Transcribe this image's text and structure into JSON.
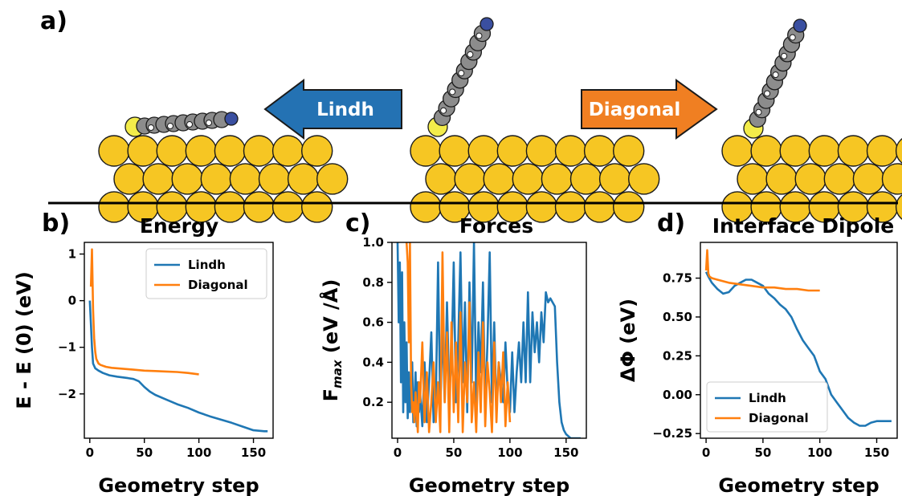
{
  "panel_a": {
    "label": "a)",
    "arrow_left_label": "Lindh",
    "arrow_right_label": "Diagonal",
    "arrow_left_color": "#2472b3",
    "arrow_right_color": "#f07f22"
  },
  "colors": {
    "lindh": "#1f77b4",
    "diagonal": "#ff7f0e",
    "gold": "#f6c623"
  },
  "chart_data": [
    {
      "panel": "b)",
      "type": "line",
      "title": "Energy",
      "xlabel": "Geometry step",
      "ylabel": "E - E (0) (eV)",
      "xlim": [
        -5,
        168
      ],
      "ylim": [
        -2.95,
        1.25
      ],
      "xticks": [
        0,
        50,
        100,
        150
      ],
      "yticks": [
        -2,
        -1,
        0,
        1
      ],
      "ytick_labels": [
        "−2",
        "−1",
        "0",
        "1"
      ],
      "legend": {
        "position": "top-right",
        "entries": [
          "Lindh",
          "Diagonal"
        ]
      },
      "series": [
        {
          "name": "Lindh",
          "color": "#1f77b4",
          "x": [
            0,
            1,
            2,
            3,
            5,
            8,
            12,
            18,
            25,
            35,
            40,
            45,
            50,
            55,
            60,
            70,
            80,
            90,
            100,
            110,
            120,
            130,
            140,
            150,
            160,
            163
          ],
          "y": [
            0,
            -0.5,
            -1.0,
            -1.35,
            -1.45,
            -1.5,
            -1.55,
            -1.6,
            -1.63,
            -1.66,
            -1.68,
            -1.73,
            -1.85,
            -1.95,
            -2.02,
            -2.12,
            -2.22,
            -2.3,
            -2.4,
            -2.48,
            -2.55,
            -2.62,
            -2.7,
            -2.78,
            -2.8,
            -2.8
          ]
        },
        {
          "name": "Diagonal",
          "color": "#ff7f0e",
          "x": [
            1,
            2,
            3,
            4,
            5,
            6,
            8,
            10,
            15,
            20,
            30,
            40,
            50,
            60,
            70,
            80,
            90,
            100
          ],
          "y": [
            0.3,
            1.1,
            -0.2,
            -0.8,
            -1.1,
            -1.25,
            -1.35,
            -1.38,
            -1.42,
            -1.44,
            -1.46,
            -1.48,
            -1.5,
            -1.51,
            -1.52,
            -1.53,
            -1.55,
            -1.58
          ]
        }
      ]
    },
    {
      "panel": "c)",
      "type": "line",
      "title": "Forces",
      "xlabel": "Geometry step",
      "ylabel": "F",
      "ylabel_sub": "max",
      "ylabel_unit": " (eV /Å)",
      "xlim": [
        -5,
        168
      ],
      "ylim": [
        0.02,
        1.0
      ],
      "xticks": [
        0,
        50,
        100,
        150
      ],
      "yticks": [
        0.2,
        0.4,
        0.6,
        0.8,
        1.0
      ],
      "ytick_labels": [
        "0.2",
        "0.4",
        "0.6",
        "0.8",
        "1.0"
      ],
      "series": [
        {
          "name": "Lindh",
          "color": "#1f77b4",
          "x": [
            0,
            1,
            2,
            3,
            4,
            5,
            6,
            7,
            8,
            9,
            10,
            11,
            12,
            13,
            14,
            15,
            16,
            17,
            18,
            19,
            20,
            22,
            24,
            26,
            28,
            30,
            32,
            34,
            36,
            38,
            40,
            42,
            44,
            46,
            48,
            50,
            52,
            54,
            56,
            58,
            60,
            62,
            64,
            66,
            68,
            70,
            72,
            74,
            76,
            78,
            80,
            82,
            84,
            86,
            88,
            90,
            92,
            94,
            96,
            98,
            100,
            102,
            104,
            106,
            108,
            110,
            112,
            114,
            116,
            118,
            120,
            122,
            124,
            126,
            128,
            130,
            132,
            134,
            136,
            138,
            140,
            142,
            144,
            146,
            148,
            150,
            152,
            154,
            156,
            158,
            160,
            162,
            163
          ],
          "y": [
            1.0,
            0.6,
            0.9,
            0.3,
            0.85,
            0.15,
            0.6,
            0.2,
            0.5,
            0.12,
            0.35,
            0.15,
            0.25,
            0.4,
            0.1,
            0.2,
            0.35,
            0.08,
            0.3,
            0.15,
            0.25,
            0.08,
            0.4,
            0.1,
            0.3,
            0.55,
            0.1,
            0.2,
            0.9,
            0.15,
            0.6,
            0.2,
            0.7,
            0.25,
            0.4,
            0.9,
            0.2,
            0.5,
            0.95,
            0.3,
            0.7,
            0.15,
            0.8,
            0.3,
            1.0,
            0.2,
            0.6,
            0.35,
            0.8,
            0.15,
            0.5,
            0.95,
            0.2,
            0.6,
            0.15,
            0.4,
            0.3,
            0.2,
            0.5,
            0.25,
            0.15,
            0.45,
            0.15,
            0.35,
            0.5,
            0.3,
            0.6,
            0.3,
            0.75,
            0.3,
            0.65,
            0.45,
            0.6,
            0.4,
            0.65,
            0.5,
            0.75,
            0.7,
            0.72,
            0.7,
            0.68,
            0.4,
            0.2,
            0.1,
            0.06,
            0.04,
            0.03,
            0.02,
            0.02,
            0.02,
            0.02,
            0.02,
            0.02
          ]
        },
        {
          "name": "Diagonal",
          "color": "#ff7f0e",
          "x": [
            8,
            9,
            10,
            11,
            12,
            13,
            14,
            15,
            16,
            17,
            18,
            19,
            20,
            22,
            24,
            26,
            28,
            30,
            32,
            34,
            36,
            38,
            40,
            42,
            44,
            46,
            48,
            50,
            52,
            54,
            56,
            58,
            60,
            62,
            64,
            66,
            68,
            70,
            72,
            74,
            76,
            78,
            80,
            82,
            84,
            86,
            88,
            90,
            92,
            94,
            96,
            98,
            100
          ],
          "y": [
            1.0,
            0.9,
            0.5,
            1.0,
            0.3,
            0.15,
            0.2,
            0.1,
            0.25,
            0.15,
            0.05,
            0.3,
            0.2,
            0.5,
            0.1,
            0.35,
            0.05,
            0.2,
            0.4,
            0.1,
            0.3,
            0.05,
            0.95,
            0.2,
            0.55,
            0.05,
            0.6,
            0.15,
            0.5,
            0.1,
            0.65,
            0.05,
            0.4,
            0.2,
            0.7,
            0.1,
            0.3,
            0.05,
            0.45,
            0.15,
            0.6,
            0.08,
            0.4,
            0.25,
            0.05,
            0.5,
            0.1,
            0.4,
            0.2,
            0.45,
            0.08,
            0.3,
            0.1
          ]
        }
      ]
    },
    {
      "panel": "d)",
      "type": "line",
      "title": "Interface Dipole",
      "xlabel": "Geometry step",
      "ylabel": "ΔΦ (eV)",
      "xlim": [
        -5,
        168
      ],
      "ylim": [
        -0.28,
        0.98
      ],
      "xticks": [
        0,
        50,
        100,
        150
      ],
      "yticks": [
        -0.25,
        0.0,
        0.25,
        0.5,
        0.75
      ],
      "ytick_labels": [
        "−0.25",
        "0.00",
        "0.25",
        "0.50",
        "0.75"
      ],
      "legend": {
        "position": "bottom-left",
        "entries": [
          "Lindh",
          "Diagonal"
        ]
      },
      "series": [
        {
          "name": "Lindh",
          "color": "#1f77b4",
          "x": [
            0,
            2,
            5,
            10,
            15,
            20,
            25,
            30,
            35,
            40,
            45,
            50,
            55,
            60,
            65,
            70,
            75,
            80,
            85,
            90,
            95,
            100,
            105,
            110,
            115,
            120,
            125,
            130,
            135,
            140,
            145,
            150,
            155,
            160,
            163
          ],
          "y": [
            0.79,
            0.76,
            0.72,
            0.68,
            0.65,
            0.66,
            0.7,
            0.72,
            0.74,
            0.74,
            0.72,
            0.7,
            0.65,
            0.62,
            0.58,
            0.55,
            0.5,
            0.42,
            0.35,
            0.3,
            0.25,
            0.15,
            0.1,
            0.0,
            -0.05,
            -0.1,
            -0.15,
            -0.18,
            -0.2,
            -0.2,
            -0.18,
            -0.17,
            -0.17,
            -0.17,
            -0.17
          ]
        },
        {
          "name": "Diagonal",
          "color": "#ff7f0e",
          "x": [
            0,
            1,
            2,
            3,
            5,
            10,
            15,
            20,
            30,
            40,
            50,
            60,
            70,
            80,
            90,
            100
          ],
          "y": [
            0.8,
            0.93,
            0.78,
            0.76,
            0.75,
            0.74,
            0.73,
            0.72,
            0.71,
            0.7,
            0.69,
            0.69,
            0.68,
            0.68,
            0.67,
            0.67
          ]
        }
      ]
    }
  ]
}
